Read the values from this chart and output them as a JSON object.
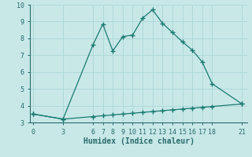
{
  "xlabel": "Humidex (Indice chaleur)",
  "x_upper": [
    0,
    3,
    6,
    7,
    8,
    9,
    10,
    11,
    12,
    13,
    14,
    15,
    16,
    17,
    18,
    21
  ],
  "y_upper": [
    3.5,
    3.2,
    7.6,
    8.85,
    7.25,
    8.1,
    8.2,
    9.2,
    9.7,
    8.9,
    8.35,
    7.8,
    7.3,
    6.6,
    5.3,
    4.1
  ],
  "x_lower": [
    0,
    3,
    6,
    7,
    8,
    9,
    10,
    11,
    12,
    13,
    14,
    15,
    16,
    17,
    18,
    21
  ],
  "y_lower": [
    3.5,
    3.2,
    3.35,
    3.4,
    3.45,
    3.5,
    3.55,
    3.6,
    3.65,
    3.7,
    3.75,
    3.8,
    3.85,
    3.9,
    3.95,
    4.1
  ],
  "line_color": "#1a7a6e",
  "bg_color": "#c8e8e8",
  "grid_color": "#b0d8d8",
  "axis_color": "#2a6a6a",
  "ylim": [
    3,
    10
  ],
  "xlim": [
    -0.3,
    21.5
  ],
  "yticks": [
    3,
    4,
    5,
    6,
    7,
    8,
    9,
    10
  ],
  "xticks": [
    0,
    3,
    6,
    7,
    8,
    9,
    10,
    11,
    12,
    13,
    14,
    15,
    16,
    17,
    18,
    21
  ],
  "tick_fontsize": 6,
  "xlabel_fontsize": 7
}
